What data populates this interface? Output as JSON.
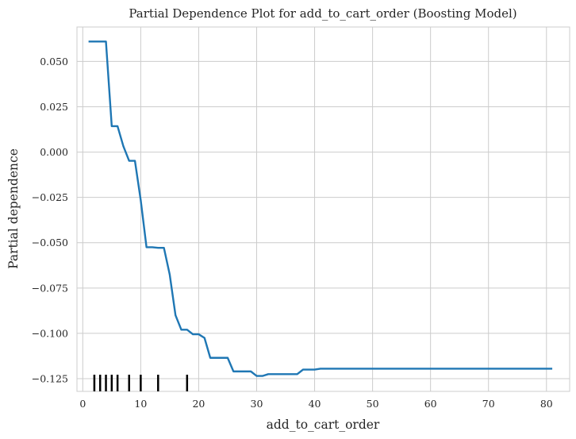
{
  "chart_data": {
    "type": "line",
    "title": "Partial Dependence Plot for add_to_cart_order (Boosting Model)",
    "xlabel": "add_to_cart_order",
    "ylabel": "Partial dependence",
    "xlim": [
      -1,
      84
    ],
    "ylim": [
      -0.132,
      0.069
    ],
    "x_ticks": [
      0,
      10,
      20,
      30,
      40,
      50,
      60,
      70,
      80
    ],
    "x_tick_labels": [
      "0",
      "10",
      "20",
      "30",
      "40",
      "50",
      "60",
      "70",
      "80"
    ],
    "y_ticks": [
      0.05,
      0.025,
      0.0,
      -0.025,
      -0.05,
      -0.075,
      -0.1,
      -0.125
    ],
    "y_tick_labels": [
      "0.050",
      "0.025",
      "0.000",
      "−0.025",
      "−0.050",
      "−0.075",
      "−0.100",
      "−0.125"
    ],
    "grid": true,
    "line_color": "#1f77b4",
    "rug_color": "#000000",
    "series": [
      {
        "x": [
          1,
          2,
          3,
          4,
          5,
          6,
          7,
          8,
          9,
          10,
          11,
          12,
          13,
          14,
          15,
          16,
          17,
          18,
          19,
          20,
          21,
          22,
          23,
          24,
          25,
          26,
          27,
          28,
          29,
          30,
          31,
          32,
          33,
          34,
          35,
          36,
          37,
          38,
          39,
          40,
          41,
          45,
          50,
          55,
          60,
          65,
          70,
          75,
          81
        ],
        "y": [
          0.061,
          0.061,
          0.061,
          0.061,
          0.0143,
          0.0143,
          0.0033,
          -0.0048,
          -0.0048,
          -0.0265,
          -0.0525,
          -0.0525,
          -0.0528,
          -0.0528,
          -0.0675,
          -0.09,
          -0.098,
          -0.098,
          -0.1005,
          -0.1005,
          -0.1025,
          -0.1135,
          -0.1135,
          -0.1135,
          -0.1135,
          -0.121,
          -0.121,
          -0.121,
          -0.121,
          -0.1235,
          -0.1235,
          -0.1225,
          -0.1225,
          -0.1225,
          -0.1225,
          -0.1225,
          -0.1225,
          -0.12,
          -0.12,
          -0.12,
          -0.1195,
          -0.1195,
          -0.1195,
          -0.1195,
          -0.1195,
          -0.1195,
          -0.1195,
          -0.1195,
          -0.1195
        ]
      }
    ],
    "rug_x": [
      2,
      3,
      4,
      5,
      6,
      8,
      10,
      13,
      18
    ]
  }
}
